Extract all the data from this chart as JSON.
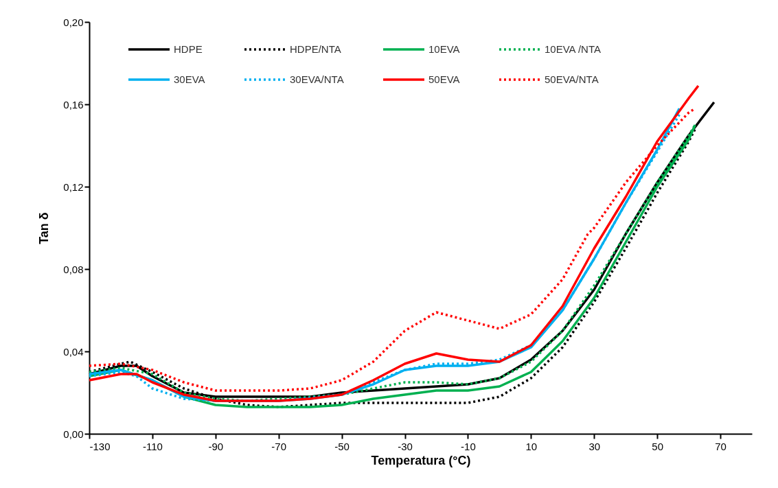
{
  "chart_data": {
    "type": "line",
    "xlabel": "Temperatura (°C)",
    "ylabel": "Tan δ",
    "xlim": [
      -130,
      80
    ],
    "xticks": [
      -130,
      -110,
      -90,
      -70,
      -50,
      -30,
      -10,
      10,
      30,
      50,
      70
    ],
    "ylim": [
      0,
      0.2
    ],
    "yticks": [
      {
        "value": 0,
        "label": "0,00"
      },
      {
        "value": 0.04,
        "label": "0,04"
      },
      {
        "value": 0.08,
        "label": "0,08"
      },
      {
        "value": 0.12,
        "label": "0,12"
      },
      {
        "value": 0.16,
        "label": "0,16"
      },
      {
        "value": 0.2,
        "label": "0,20"
      }
    ],
    "grid": false,
    "legend": "top",
    "marker": "none",
    "series": [
      {
        "name": "HDPE",
        "color": "#000000",
        "line_style": "solid",
        "x": [
          -130,
          -120,
          -115,
          -110,
          -100,
          -90,
          -80,
          -70,
          -60,
          -50,
          -40,
          -30,
          -20,
          -10,
          0,
          10,
          20,
          30,
          40,
          50,
          60,
          68
        ],
        "values": [
          0.029,
          0.033,
          0.033,
          0.028,
          0.02,
          0.018,
          0.018,
          0.018,
          0.018,
          0.02,
          0.021,
          0.022,
          0.023,
          0.024,
          0.027,
          0.036,
          0.05,
          0.07,
          0.097,
          0.122,
          0.145,
          0.161
        ]
      },
      {
        "name": "HDPE/NTA",
        "color": "#000000",
        "line_style": "dotted",
        "x": [
          -130,
          -120,
          -117,
          -110,
          -100,
          -90,
          -80,
          -70,
          -60,
          -50,
          -40,
          -30,
          -20,
          -10,
          0,
          10,
          20,
          30,
          40,
          50,
          60,
          62
        ],
        "values": [
          0.03,
          0.034,
          0.035,
          0.03,
          0.022,
          0.017,
          0.014,
          0.013,
          0.014,
          0.015,
          0.015,
          0.015,
          0.015,
          0.015,
          0.018,
          0.027,
          0.042,
          0.064,
          0.09,
          0.117,
          0.142,
          0.148
        ]
      },
      {
        "name": "10EVA",
        "color": "#00b050",
        "line_style": "solid",
        "x": [
          -130,
          -120,
          -110,
          -100,
          -90,
          -80,
          -70,
          -60,
          -50,
          -40,
          -30,
          -20,
          -10,
          0,
          10,
          20,
          30,
          40,
          50,
          60,
          62
        ],
        "values": [
          0.028,
          0.031,
          0.026,
          0.018,
          0.014,
          0.013,
          0.013,
          0.013,
          0.014,
          0.017,
          0.019,
          0.021,
          0.021,
          0.023,
          0.03,
          0.045,
          0.066,
          0.093,
          0.12,
          0.143,
          0.15
        ]
      },
      {
        "name": "10EVA /NTA",
        "color": "#00b050",
        "line_style": "dotted",
        "x": [
          -130,
          -120,
          -110,
          -100,
          -90,
          -80,
          -70,
          -60,
          -50,
          -40,
          -30,
          -20,
          -10,
          0,
          10,
          20,
          30,
          40,
          50,
          60,
          62
        ],
        "values": [
          0.03,
          0.032,
          0.029,
          0.02,
          0.017,
          0.016,
          0.017,
          0.018,
          0.019,
          0.022,
          0.025,
          0.025,
          0.024,
          0.027,
          0.035,
          0.05,
          0.072,
          0.097,
          0.122,
          0.145,
          0.15
        ]
      },
      {
        "name": "30EVA",
        "color": "#00b0f0",
        "line_style": "solid",
        "x": [
          -130,
          -120,
          -110,
          -100,
          -90,
          -80,
          -70,
          -60,
          -50,
          -40,
          -30,
          -20,
          -10,
          0,
          10,
          20,
          30,
          40,
          50,
          57
        ],
        "values": [
          0.029,
          0.031,
          0.026,
          0.018,
          0.016,
          0.016,
          0.016,
          0.017,
          0.019,
          0.024,
          0.031,
          0.033,
          0.033,
          0.035,
          0.042,
          0.06,
          0.085,
          0.112,
          0.138,
          0.158
        ]
      },
      {
        "name": "30EVA/NTA",
        "color": "#00b0f0",
        "line_style": "dotted",
        "x": [
          -130,
          -120,
          -115,
          -110,
          -100,
          -90,
          -70,
          -50,
          -40,
          -30,
          -20,
          -10,
          0,
          10,
          20,
          30,
          40,
          50,
          57
        ],
        "values": [
          0.028,
          0.03,
          0.028,
          0.022,
          0.017,
          0.016,
          0.016,
          0.019,
          0.025,
          0.031,
          0.034,
          0.034,
          0.036,
          0.043,
          0.06,
          0.085,
          0.112,
          0.137,
          0.155
        ]
      },
      {
        "name": "50EVA",
        "color": "#ff0000",
        "line_style": "solid",
        "x": [
          -130,
          -120,
          -115,
          -110,
          -100,
          -90,
          -80,
          -70,
          -60,
          -50,
          -40,
          -30,
          -20,
          -10,
          0,
          10,
          20,
          30,
          40,
          50,
          60,
          63
        ],
        "values": [
          0.026,
          0.029,
          0.029,
          0.025,
          0.019,
          0.016,
          0.016,
          0.016,
          0.017,
          0.019,
          0.026,
          0.034,
          0.039,
          0.036,
          0.035,
          0.043,
          0.062,
          0.09,
          0.115,
          0.142,
          0.163,
          0.169
        ]
      },
      {
        "name": "50EVA/NTA",
        "color": "#ff0000",
        "line_style": "dotted",
        "x": [
          -130,
          -120,
          -110,
          -100,
          -90,
          -80,
          -70,
          -60,
          -50,
          -40,
          -30,
          -20,
          -10,
          0,
          10,
          20,
          28,
          30,
          40,
          50,
          60,
          62
        ],
        "values": [
          0.033,
          0.034,
          0.031,
          0.025,
          0.021,
          0.021,
          0.021,
          0.022,
          0.026,
          0.035,
          0.05,
          0.059,
          0.055,
          0.051,
          0.058,
          0.075,
          0.097,
          0.1,
          0.122,
          0.14,
          0.156,
          0.158
        ]
      }
    ]
  }
}
